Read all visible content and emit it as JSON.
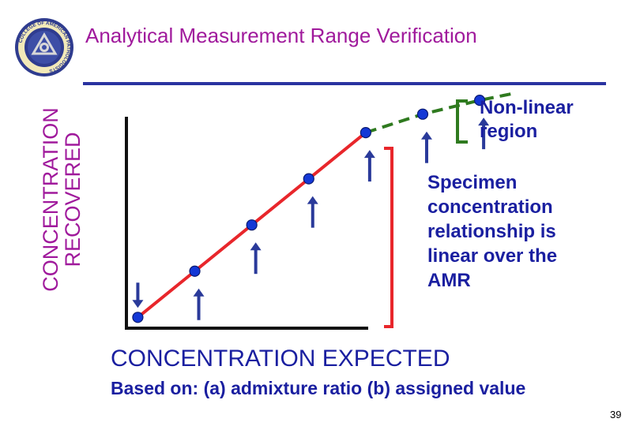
{
  "title": "Analytical Measurement Range Verification",
  "logo": {
    "text": "COLLEGE OF AMERICAN PATHOLOGISTS",
    "colors": {
      "outer": "#2f3c8f",
      "ring": "#f2e9b8",
      "inner": "#3d4ea6",
      "emblem": "#d8d8d8"
    }
  },
  "y_axis_label": [
    "CONCENTRATION",
    "RECOVERED"
  ],
  "x_axis_label": "CONCENTRATION EXPECTED",
  "x_axis_subtitle": "Based on: (a) admixture ratio (b) assigned value",
  "annotations": {
    "nonlinear_region": [
      "Non-linear",
      "region"
    ],
    "linear_note": [
      "Specimen",
      "concentration",
      "relationship is",
      "linear over the",
      "AMR"
    ]
  },
  "page_number": "39",
  "colors": {
    "title": "#a01a9c",
    "rule": "#2a33a0",
    "text_blue": "#1a1fa0",
    "line_red": "#e8262b",
    "line_green": "#2f7a1f",
    "point": "#1438d6",
    "arrow": "#2a3a9a",
    "bracket_green": "#2f7a1f",
    "bracket_red": "#e8262b",
    "axis": "#111111"
  },
  "chart_data": {
    "type": "line",
    "series": [
      {
        "name": "",
        "style": "solid",
        "color": "red",
        "points": [
          [
            1,
            1
          ],
          [
            2,
            2
          ],
          [
            3,
            3
          ],
          [
            4,
            4
          ],
          [
            5,
            5
          ]
        ]
      },
      {
        "name": "",
        "style": "dashed",
        "color": "green",
        "points": [
          [
            5,
            5
          ],
          [
            6,
            5.4
          ],
          [
            7,
            5.7
          ],
          [
            7.6,
            5.85
          ]
        ]
      }
    ],
    "markers": [
      [
        1,
        1
      ],
      [
        2,
        2
      ],
      [
        3,
        3
      ],
      [
        4,
        4
      ],
      [
        5,
        5
      ],
      [
        6,
        5.4
      ],
      [
        7,
        5.7
      ]
    ],
    "arrows": [
      {
        "x": 1,
        "direction": "down"
      },
      {
        "x": 2,
        "direction": "up"
      },
      {
        "x": 3,
        "direction": "up"
      },
      {
        "x": 4,
        "direction": "up"
      },
      {
        "x": 5,
        "direction": "up"
      },
      {
        "x": 6,
        "direction": "up"
      },
      {
        "x": 7,
        "direction": "up"
      }
    ],
    "xlim": [
      0.8,
      7.9
    ],
    "ylim": [
      0.8,
      6.3
    ],
    "grid": false
  }
}
